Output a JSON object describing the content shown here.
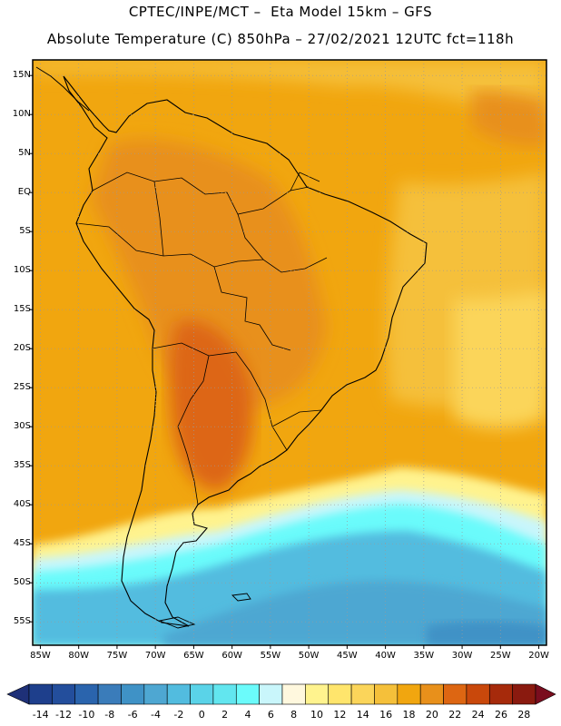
{
  "header": {
    "line1": "CPTEC/INPE/MCT –  Eta Model 15km – GFS",
    "line2": "Absolute Temperature (C) 850hPa – 27/02/2021 12UTC fct=118h"
  },
  "map": {
    "lat_ticks": [
      "15N",
      "10N",
      "5N",
      "EQ",
      "5S",
      "10S",
      "15S",
      "20S",
      "25S",
      "30S",
      "35S",
      "40S",
      "45S",
      "50S",
      "55S"
    ],
    "lon_ticks": [
      "85W",
      "80W",
      "75W",
      "70W",
      "65W",
      "60W",
      "55W",
      "50W",
      "45W",
      "40W",
      "35W",
      "30W",
      "25W",
      "20W"
    ],
    "lat_values": [
      15,
      10,
      5,
      0,
      -5,
      -10,
      -15,
      -20,
      -25,
      -30,
      -35,
      -40,
      -45,
      -50,
      -55
    ],
    "lon_values": [
      -85,
      -80,
      -75,
      -70,
      -65,
      -60,
      -55,
      -50,
      -45,
      -40,
      -35,
      -30,
      -25,
      -20
    ],
    "extent": {
      "lon_min": -86,
      "lon_max": -19,
      "lat_min": -58,
      "lat_max": 17
    }
  },
  "colorbar": {
    "labels": [
      "-14",
      "-12",
      "-10",
      "-8",
      "-6",
      "-4",
      "-2",
      "0",
      "2",
      "4",
      "6",
      "8",
      "10",
      "12",
      "14",
      "16",
      "18",
      "20",
      "22",
      "24",
      "26",
      "28"
    ],
    "colors": [
      "#1e3f8c",
      "#234e9c",
      "#2a64ad",
      "#3a7cba",
      "#3f92c6",
      "#4ea7d2",
      "#52bcdf",
      "#5ad3e8",
      "#62e6ef",
      "#6bfbfb",
      "#c9f6fb",
      "#fff8de",
      "#fff38e",
      "#ffe56c",
      "#fbd55a",
      "#f5c03a",
      "#f1a60f",
      "#e8901b",
      "#dd6612",
      "#c9480b",
      "#a62a0b",
      "#8a1a0f"
    ],
    "under_color": "#1e3078",
    "over_color": "#7a0d1e"
  }
}
